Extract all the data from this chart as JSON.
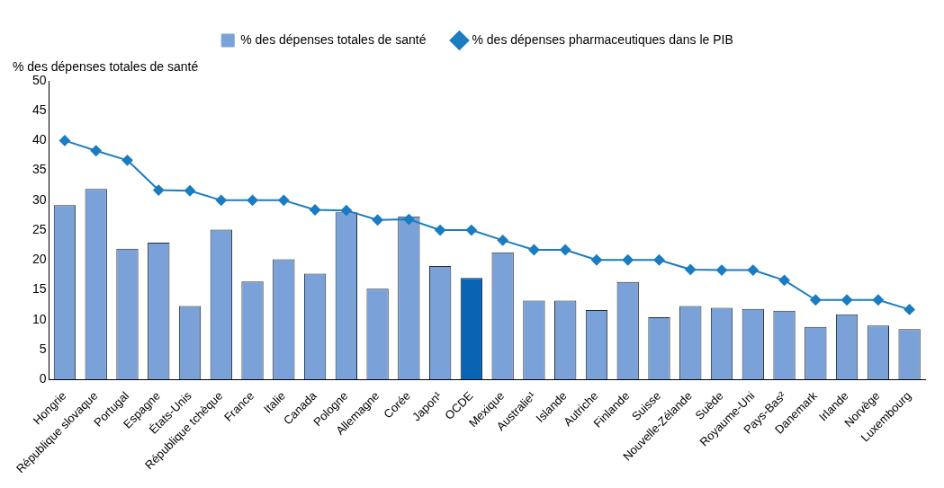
{
  "chart_data": {
    "type": "bar",
    "ylabel": "% des dépenses totales de santé",
    "categories": [
      "Hongrie",
      "République slovaque",
      "Portugal",
      "Espagne",
      "États-Unis",
      "République tchèque",
      "France",
      "Italie",
      "Canada",
      "Pologne",
      "Allemagne",
      "Corée",
      "Japon¹",
      "OCDE",
      "Mexique",
      "Australie¹",
      "Islande",
      "Autriche",
      "Finlande",
      "Suisse",
      "Nouvelle-Zélande",
      "Suède",
      "Royaume-Uni",
      "Pays-Bas²",
      "Danemark",
      "Irlande",
      "Norvège",
      "Luxembourg"
    ],
    "series": [
      {
        "name": "% des dépenses totales de santé",
        "color": "#7ba2d8",
        "colors": [
          "#7ba2d8",
          "#7ba2d8",
          "#7ba2d8",
          "#7ba2d8",
          "#7ba2d8",
          "#7ba2d8",
          "#7ba2d8",
          "#7ba2d8",
          "#7ba2d8",
          "#7ba2d8",
          "#7ba2d8",
          "#7ba2d8",
          "#7ba2d8",
          "#0a64b4",
          "#7ba2d8",
          "#7ba2d8",
          "#7ba2d8",
          "#7ba2d8",
          "#7ba2d8",
          "#7ba2d8",
          "#7ba2d8",
          "#7ba2d8",
          "#7ba2d8",
          "#7ba2d8",
          "#7ba2d8",
          "#7ba2d8",
          "#7ba2d8",
          "#7ba2d8"
        ],
        "values": [
          29.2,
          31.9,
          21.9,
          22.9,
          12.3,
          25.1,
          16.4,
          20.1,
          17.7,
          28.0,
          15.2,
          27.3,
          19.0,
          17.0,
          21.3,
          13.2,
          13.2,
          11.6,
          16.3,
          10.4,
          12.3,
          12.0,
          11.8,
          11.5,
          8.8,
          10.9,
          9.0,
          8.4
        ]
      },
      {
        "name": "% des dépenses pharmaceutiques dans le PIB",
        "type": "line",
        "color": "#1a7cc1",
        "marker": "diamond",
        "values": [
          40.0,
          38.3,
          36.7,
          31.7,
          31.6,
          30.0,
          30.0,
          30.0,
          28.4,
          28.3,
          26.7,
          26.8,
          25.0,
          25.0,
          23.3,
          21.7,
          21.7,
          20.0,
          20.0,
          20.0,
          18.4,
          18.3,
          18.3,
          16.6,
          13.3,
          13.3,
          13.3,
          11.7
        ]
      }
    ],
    "ylim": [
      0,
      50
    ],
    "yticks": [
      0,
      5,
      10,
      15,
      20,
      25,
      30,
      35,
      40,
      45,
      50
    ],
    "legend": "top"
  }
}
